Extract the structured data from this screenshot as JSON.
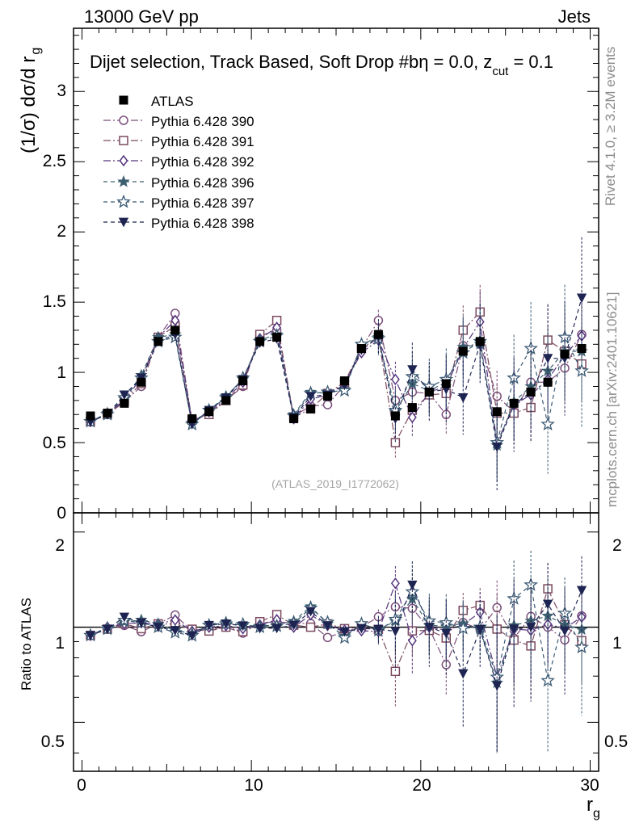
{
  "header": {
    "left": "13000 GeV pp",
    "right": "Jets"
  },
  "side_labels": {
    "rivet": "Rivet 4.1.0, ≥ 3.2M events",
    "mcplots": "mcplots.cern.ch [arXiv:2401.10621]"
  },
  "chart_data": {
    "type": "line",
    "title": "Dijet selection, Track Based, Soft Drop #bη = 0.0, z_cut = 0.1",
    "title_main": "Dijet selection, Track Based, Soft Drop #bη = 0.0, z",
    "title_sub": "cut",
    "title_tail": " = 0.1",
    "watermark": "(ATLAS_2019_I1772062)",
    "xlabel": "r",
    "xlabel_sub": "g",
    "ylabel": "(1/σ) dσ/d r",
    "ylabel_sub": "g",
    "ratio_ylabel": "Ratio to ATLAS",
    "xlim": [
      -0.5,
      30.5
    ],
    "ylim": [
      0,
      3.45
    ],
    "ratio_ylim": [
      0.35,
      2.3
    ],
    "x_ticks": [
      "0",
      "10",
      "20",
      "30"
    ],
    "y_ticks": [
      "0",
      "0.5",
      "1",
      "1.5",
      "2",
      "2.5",
      "3"
    ],
    "ratio_y_ticks": [
      "0.5",
      "1",
      "2"
    ],
    "x": [
      0.5,
      1.5,
      2.5,
      3.5,
      4.5,
      5.5,
      6.5,
      7.5,
      8.5,
      9.5,
      10.5,
      11.5,
      12.5,
      13.5,
      14.5,
      15.5,
      16.5,
      17.5,
      18.5,
      19.5,
      20.5,
      21.5,
      22.5,
      23.5,
      24.5,
      25.5,
      26.5,
      27.5,
      28.5,
      29.5
    ],
    "data": {
      "name": "ATLAS",
      "values": [
        0.69,
        0.71,
        0.78,
        0.93,
        1.22,
        1.3,
        0.67,
        0.72,
        0.8,
        0.94,
        1.22,
        1.25,
        0.67,
        0.74,
        0.83,
        0.94,
        1.17,
        1.27,
        0.69,
        0.75,
        0.86,
        0.92,
        1.15,
        1.22,
        0.72,
        0.78,
        0.86,
        0.93,
        1.13,
        1.17
      ]
    },
    "series": [
      {
        "name": "Pythia 6.428 390",
        "color": "#7b4f7b",
        "marker": "circle-open",
        "dash": "9,3,2,3",
        "values": [
          0.65,
          0.7,
          0.79,
          0.9,
          1.25,
          1.42,
          0.65,
          0.71,
          0.8,
          0.9,
          1.26,
          1.3,
          0.69,
          0.76,
          0.77,
          0.91,
          1.17,
          1.37,
          0.8,
          0.86,
          0.85,
          0.7,
          1.19,
          1.2,
          0.83,
          0.72,
          0.93,
          0.93,
          1.03,
          1.27
        ]
      },
      {
        "name": "Pythia 6.428 391",
        "color": "#7b4a60",
        "marker": "square-open",
        "dash": "9,3,2,3",
        "values": [
          0.65,
          0.7,
          0.8,
          0.92,
          1.25,
          1.33,
          0.66,
          0.7,
          0.8,
          0.91,
          1.27,
          1.37,
          0.68,
          0.74,
          0.85,
          0.93,
          1.17,
          1.25,
          0.5,
          0.73,
          0.84,
          0.85,
          1.3,
          1.43,
          0.71,
          0.71,
          0.75,
          1.23,
          1.15,
          1.06
        ]
      },
      {
        "name": "Pythia 6.428 392",
        "color": "#56367e",
        "marker": "diamond-open",
        "dash": "9,3,2,3",
        "values": [
          0.65,
          0.71,
          0.8,
          0.96,
          1.25,
          1.37,
          0.65,
          0.72,
          0.81,
          0.93,
          1.24,
          1.32,
          0.67,
          0.81,
          0.84,
          0.92,
          1.14,
          1.23,
          0.95,
          0.68,
          0.86,
          0.9,
          1.17,
          1.36,
          0.5,
          0.77,
          0.84,
          0.95,
          1.12,
          1.26
        ]
      },
      {
        "name": "Pythia 6.428 396",
        "color": "#3d6070",
        "marker": "star-filled",
        "dash": "5,4",
        "values": [
          0.65,
          0.71,
          0.81,
          0.98,
          1.25,
          1.27,
          0.64,
          0.73,
          0.83,
          0.95,
          1.23,
          1.27,
          0.7,
          0.86,
          0.85,
          0.88,
          1.2,
          1.25,
          0.72,
          0.92,
          0.87,
          0.93,
          1.18,
          1.2,
          0.48,
          0.79,
          0.9,
          1.01,
          1.15,
          1.15
        ]
      },
      {
        "name": "Pythia 6.428 397",
        "color": "#3c5b75",
        "marker": "star-open",
        "dash": "5,4",
        "values": [
          0.65,
          0.7,
          0.82,
          0.96,
          1.22,
          1.25,
          0.63,
          0.73,
          0.82,
          0.96,
          1.22,
          1.26,
          0.69,
          0.85,
          0.86,
          0.87,
          1.2,
          1.24,
          0.73,
          0.97,
          0.9,
          0.95,
          1.14,
          1.22,
          0.5,
          0.96,
          1.17,
          0.63,
          1.25,
          1.01
        ]
      },
      {
        "name": "Pythia 6.428 398",
        "color": "#1e2452",
        "marker": "triangle-down",
        "dash": "5,4",
        "values": [
          0.65,
          0.7,
          0.84,
          0.96,
          1.22,
          1.27,
          0.63,
          0.73,
          0.82,
          0.95,
          1.21,
          1.24,
          0.68,
          0.83,
          0.84,
          0.91,
          1.16,
          1.25,
          0.67,
          1.02,
          0.86,
          0.88,
          0.82,
          1.2,
          0.47,
          0.77,
          0.86,
          1.1,
          1.1,
          1.53
        ]
      }
    ]
  }
}
